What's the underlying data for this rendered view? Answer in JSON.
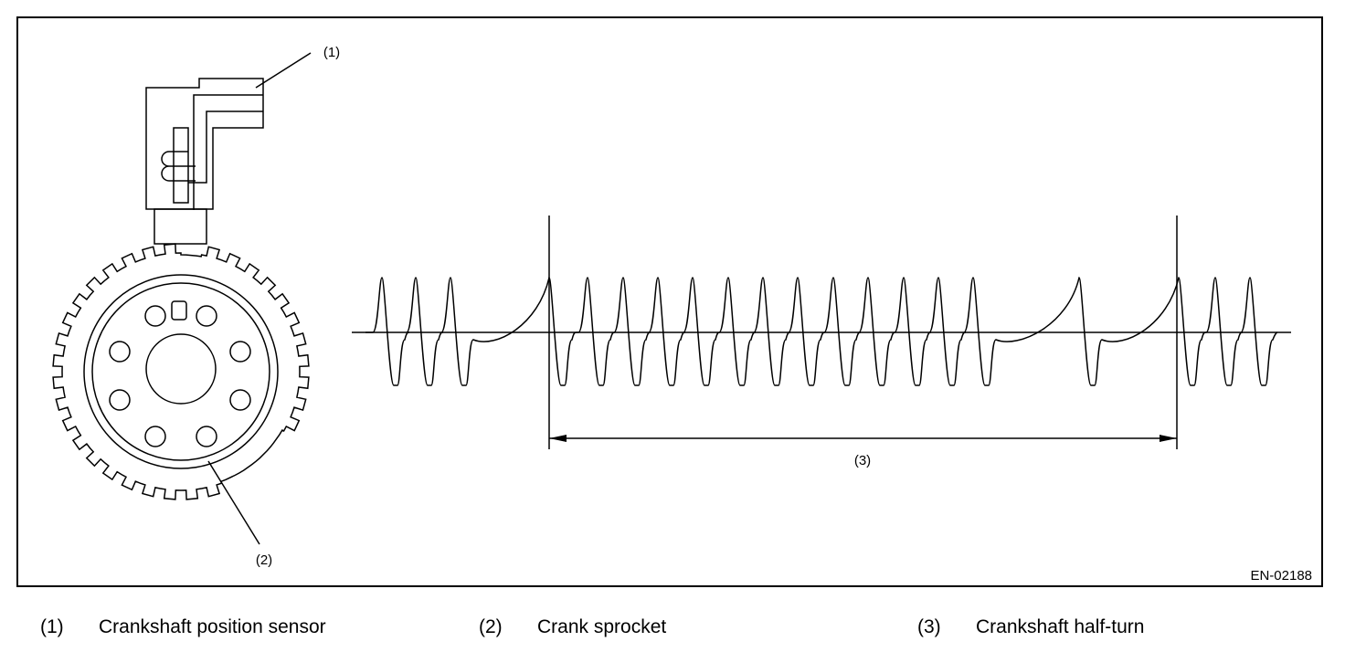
{
  "figure": {
    "callouts": [
      "(1)",
      "(2)",
      "(3)"
    ],
    "code": "EN-02188"
  },
  "legend": [
    {
      "number": "(1)",
      "label": "Crankshaft position sensor"
    },
    {
      "number": "(2)",
      "label": "Crank sprocket"
    },
    {
      "number": "(3)",
      "label": "Crankshaft half-turn"
    }
  ]
}
